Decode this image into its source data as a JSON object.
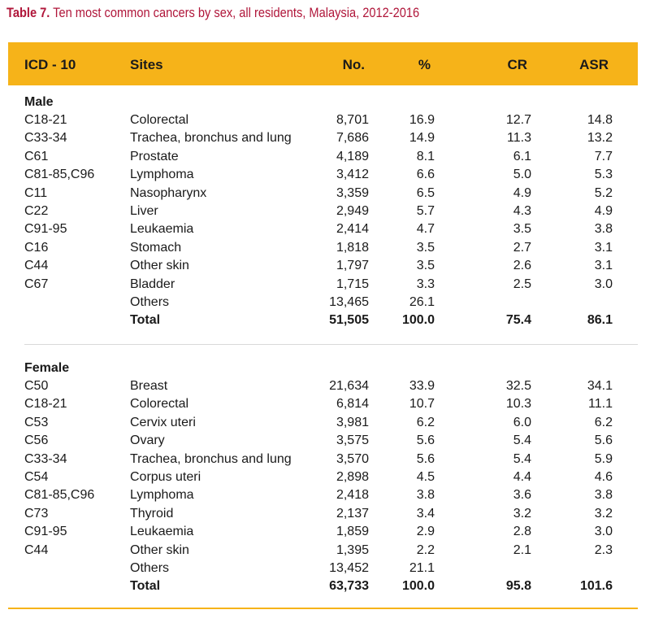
{
  "caption": {
    "label": "Table 7.",
    "text": " Ten most common cancers by sex, all residents, Malaysia, 2012-2016"
  },
  "header": {
    "icd": "ICD - 10",
    "sites": "Sites",
    "no": "No.",
    "pct": "%",
    "cr": "CR",
    "asr": "ASR"
  },
  "male": {
    "label": "Male",
    "rows": [
      {
        "code": "C18-21",
        "site": "Colorectal",
        "no": "8,701",
        "pct": "16.9",
        "cr": "12.7",
        "asr": "14.8"
      },
      {
        "code": "C33-34",
        "site": "Trachea, bronchus and lung",
        "no": "7,686",
        "pct": "14.9",
        "cr": "11.3",
        "asr": "13.2"
      },
      {
        "code": "C61",
        "site": "Prostate",
        "no": "4,189",
        "pct": "8.1",
        "cr": "6.1",
        "asr": "7.7"
      },
      {
        "code": "C81-85,C96",
        "site": "Lymphoma",
        "no": "3,412",
        "pct": "6.6",
        "cr": "5.0",
        "asr": "5.3"
      },
      {
        "code": "C11",
        "site": "Nasopharynx",
        "no": "3,359",
        "pct": "6.5",
        "cr": "4.9",
        "asr": "5.2"
      },
      {
        "code": "C22",
        "site": "Liver",
        "no": "2,949",
        "pct": "5.7",
        "cr": "4.3",
        "asr": "4.9"
      },
      {
        "code": "C91-95",
        "site": "Leukaemia",
        "no": "2,414",
        "pct": "4.7",
        "cr": "3.5",
        "asr": "3.8"
      },
      {
        "code": "C16",
        "site": "Stomach",
        "no": "1,818",
        "pct": "3.5",
        "cr": "2.7",
        "asr": "3.1"
      },
      {
        "code": "C44",
        "site": "Other skin",
        "no": "1,797",
        "pct": "3.5",
        "cr": "2.6",
        "asr": "3.1"
      },
      {
        "code": "C67",
        "site": "Bladder",
        "no": "1,715",
        "pct": "3.3",
        "cr": "2.5",
        "asr": "3.0"
      },
      {
        "code": "",
        "site": "Others",
        "no": "13,465",
        "pct": "26.1",
        "cr": "",
        "asr": ""
      }
    ],
    "total": {
      "site": "Total",
      "no": "51,505",
      "pct": "100.0",
      "cr": "75.4",
      "asr": "86.1"
    }
  },
  "female": {
    "label": "Female",
    "rows": [
      {
        "code": "C50",
        "site": "Breast",
        "no": "21,634",
        "pct": "33.9",
        "cr": "32.5",
        "asr": "34.1"
      },
      {
        "code": "C18-21",
        "site": "Colorectal",
        "no": "6,814",
        "pct": "10.7",
        "cr": "10.3",
        "asr": "11.1"
      },
      {
        "code": "C53",
        "site": "Cervix uteri",
        "no": "3,981",
        "pct": "6.2",
        "cr": "6.0",
        "asr": "6.2"
      },
      {
        "code": "C56",
        "site": "Ovary",
        "no": "3,575",
        "pct": "5.6",
        "cr": "5.4",
        "asr": "5.6"
      },
      {
        "code": "C33-34",
        "site": "Trachea, bronchus and lung",
        "no": "3,570",
        "pct": "5.6",
        "cr": "5.4",
        "asr": "5.9"
      },
      {
        "code": "C54",
        "site": "Corpus uteri",
        "no": "2,898",
        "pct": "4.5",
        "cr": "4.4",
        "asr": "4.6"
      },
      {
        "code": "C81-85,C96",
        "site": "Lymphoma",
        "no": "2,418",
        "pct": "3.8",
        "cr": "3.6",
        "asr": "3.8"
      },
      {
        "code": "C73",
        "site": "Thyroid",
        "no": "2,137",
        "pct": "3.4",
        "cr": "3.2",
        "asr": "3.2"
      },
      {
        "code": "C91-95",
        "site": "Leukaemia",
        "no": "1,859",
        "pct": "2.9",
        "cr": "2.8",
        "asr": "3.0"
      },
      {
        "code": "C44",
        "site": "Other skin",
        "no": "1,395",
        "pct": "2.2",
        "cr": "2.1",
        "asr": "2.3"
      },
      {
        "code": "",
        "site": "Others",
        "no": "13,452",
        "pct": "21.1",
        "cr": "",
        "asr": ""
      }
    ],
    "total": {
      "site": "Total",
      "no": "63,733",
      "pct": "100.0",
      "cr": "95.8",
      "asr": "101.6"
    }
  },
  "colors": {
    "accent": "#f6b319",
    "caption": "#b0163a"
  }
}
